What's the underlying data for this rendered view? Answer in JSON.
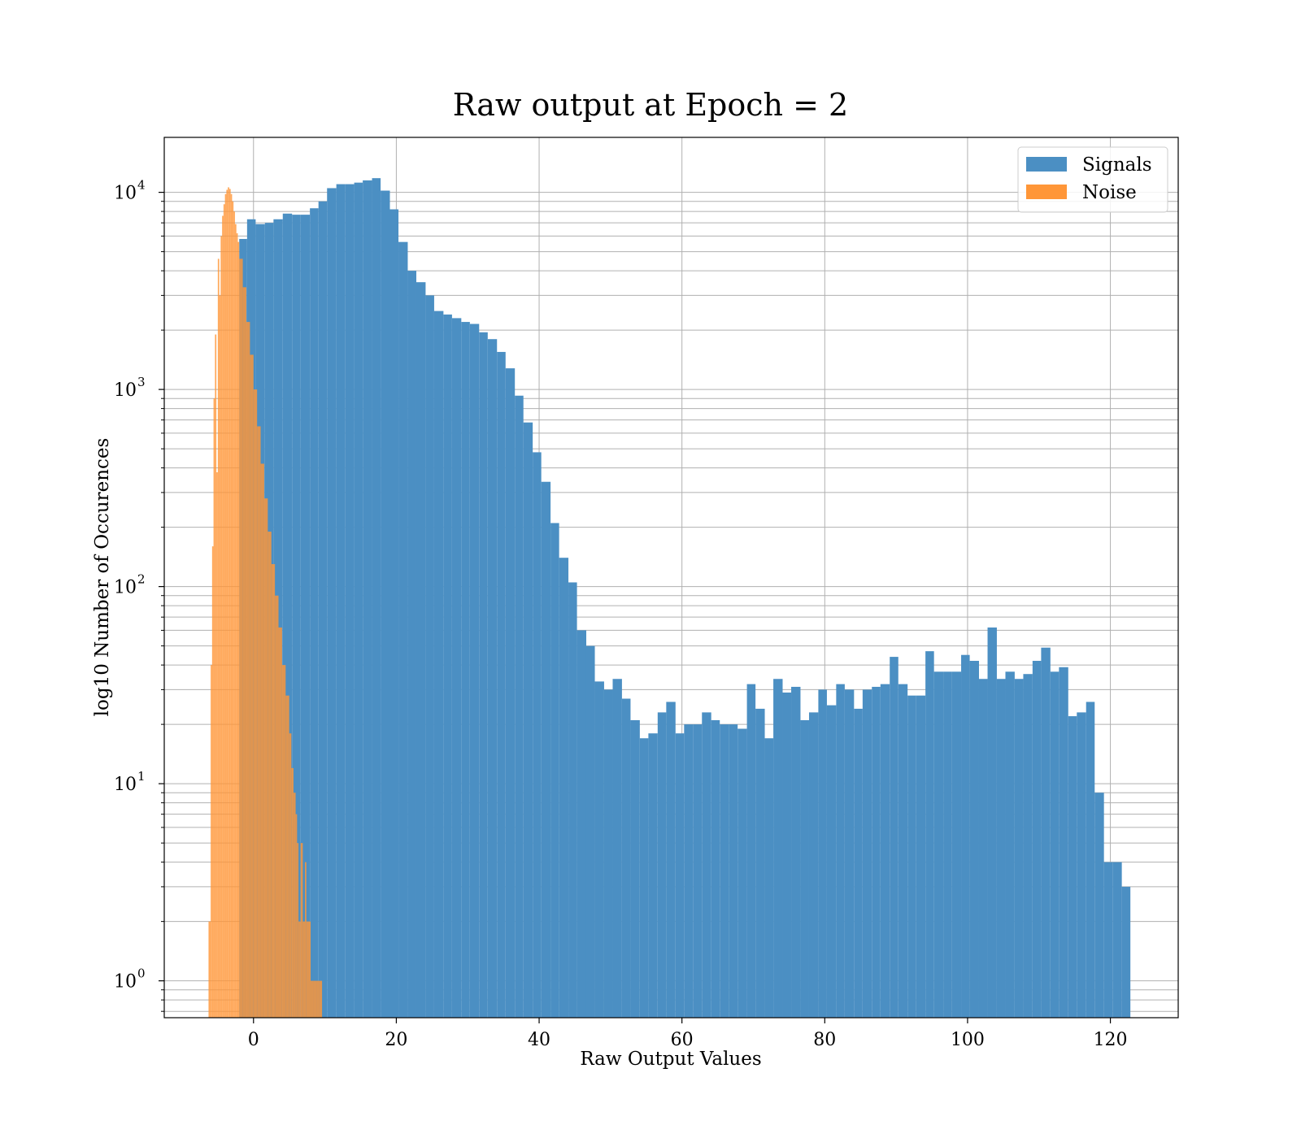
{
  "chart_data": {
    "type": "bar",
    "title": "Raw output at Epoch = 2",
    "xlabel": "Raw Output Values",
    "ylabel": "log10 Number of Occurences",
    "x_ticks": [
      0,
      20,
      40,
      60,
      80,
      100,
      120
    ],
    "x_tick_labels": [
      "0",
      "20",
      "40",
      "60",
      "80",
      "100",
      "120"
    ],
    "xlim": [
      -12.5,
      129.5
    ],
    "y_scale": "log",
    "ylim": [
      0.65,
      19000
    ],
    "y_ticks": [
      {
        "value": 1,
        "base": "10",
        "exp": "0"
      },
      {
        "value": 10,
        "base": "10",
        "exp": "1"
      },
      {
        "value": 100,
        "base": "10",
        "exp": "2"
      },
      {
        "value": 1000,
        "base": "10",
        "exp": "3"
      },
      {
        "value": 10000,
        "base": "10",
        "exp": "4"
      }
    ],
    "grid": "major and minor",
    "legend": {
      "position": "top-right",
      "entries": [
        "Signals",
        "Noise"
      ]
    },
    "colors": {
      "Signals": "#4b8fc3",
      "Noise": "#ff9638",
      "overlap": "#e08636"
    },
    "series": [
      {
        "name": "Signals",
        "bins": [
          [
            -2.0,
            -0.9,
            5800
          ],
          [
            -0.9,
            0.3,
            7300
          ],
          [
            0.3,
            1.6,
            6900
          ],
          [
            1.6,
            2.8,
            7000
          ],
          [
            2.8,
            4.1,
            7300
          ],
          [
            4.1,
            5.4,
            7800
          ],
          [
            5.4,
            6.6,
            7700
          ],
          [
            6.6,
            7.9,
            7700
          ],
          [
            7.9,
            9.1,
            8300
          ],
          [
            9.1,
            10.3,
            9000
          ],
          [
            10.3,
            11.6,
            10500
          ],
          [
            11.6,
            12.8,
            11000
          ],
          [
            12.8,
            14.1,
            11000
          ],
          [
            14.1,
            15.3,
            11200
          ],
          [
            15.3,
            16.6,
            11500
          ],
          [
            16.6,
            17.8,
            11800
          ],
          [
            17.8,
            19.1,
            10200
          ],
          [
            19.1,
            20.3,
            8200
          ],
          [
            20.3,
            21.6,
            5600
          ],
          [
            21.6,
            22.8,
            4000
          ],
          [
            22.8,
            24.1,
            3500
          ],
          [
            24.1,
            25.3,
            3000
          ],
          [
            25.3,
            26.6,
            2500
          ],
          [
            26.6,
            27.8,
            2400
          ],
          [
            27.8,
            29.1,
            2300
          ],
          [
            29.1,
            30.3,
            2200
          ],
          [
            30.3,
            31.6,
            2150
          ],
          [
            31.6,
            32.8,
            1950
          ],
          [
            32.8,
            34.1,
            1800
          ],
          [
            34.1,
            35.3,
            1550
          ],
          [
            35.3,
            36.6,
            1280
          ],
          [
            36.6,
            37.8,
            930
          ],
          [
            37.8,
            39.1,
            680
          ],
          [
            39.1,
            40.3,
            480
          ],
          [
            40.3,
            41.6,
            340
          ],
          [
            41.6,
            42.8,
            210
          ],
          [
            42.8,
            44.1,
            140
          ],
          [
            44.1,
            45.3,
            105
          ],
          [
            45.3,
            46.6,
            60
          ],
          [
            46.6,
            47.8,
            50
          ],
          [
            47.8,
            49.1,
            33
          ],
          [
            49.1,
            50.3,
            30
          ],
          [
            50.3,
            51.6,
            34
          ],
          [
            51.6,
            52.8,
            27
          ],
          [
            52.8,
            54.1,
            21
          ],
          [
            54.1,
            55.3,
            17
          ],
          [
            55.3,
            56.6,
            18
          ],
          [
            56.6,
            57.8,
            23
          ],
          [
            57.8,
            59.1,
            26
          ],
          [
            59.1,
            60.3,
            18
          ],
          [
            60.3,
            61.6,
            20
          ],
          [
            61.6,
            62.8,
            20
          ],
          [
            62.8,
            64.1,
            23
          ],
          [
            64.1,
            65.3,
            21
          ],
          [
            65.3,
            66.6,
            20
          ],
          [
            66.6,
            67.8,
            20
          ],
          [
            67.8,
            69.1,
            19
          ],
          [
            69.1,
            70.3,
            32
          ],
          [
            70.3,
            71.6,
            24
          ],
          [
            71.6,
            72.8,
            17
          ],
          [
            72.8,
            74.1,
            34
          ],
          [
            74.1,
            75.3,
            29
          ],
          [
            75.3,
            76.6,
            31
          ],
          [
            76.6,
            77.8,
            21
          ],
          [
            77.8,
            79.1,
            23
          ],
          [
            79.1,
            80.3,
            30
          ],
          [
            80.3,
            81.6,
            25
          ],
          [
            81.6,
            82.8,
            32
          ],
          [
            82.8,
            84.1,
            30
          ],
          [
            84.1,
            85.3,
            24
          ],
          [
            85.3,
            86.6,
            30
          ],
          [
            86.6,
            87.8,
            31
          ],
          [
            87.8,
            89.1,
            32
          ],
          [
            89.1,
            90.3,
            44
          ],
          [
            90.3,
            91.6,
            32
          ],
          [
            91.6,
            92.8,
            28
          ],
          [
            92.8,
            94.1,
            28
          ],
          [
            94.1,
            95.3,
            47
          ],
          [
            95.3,
            96.6,
            37
          ],
          [
            96.6,
            97.8,
            37
          ],
          [
            97.8,
            99.1,
            37
          ],
          [
            99.1,
            100.3,
            45
          ],
          [
            100.3,
            101.6,
            42
          ],
          [
            101.6,
            102.8,
            34
          ],
          [
            102.8,
            104.1,
            62
          ],
          [
            104.1,
            105.3,
            34
          ],
          [
            105.3,
            106.6,
            37
          ],
          [
            106.6,
            107.8,
            34
          ],
          [
            107.8,
            109.1,
            36
          ],
          [
            109.1,
            110.3,
            42
          ],
          [
            110.3,
            111.6,
            49
          ],
          [
            111.6,
            112.8,
            37
          ],
          [
            112.8,
            114.1,
            39
          ],
          [
            114.1,
            115.3,
            22
          ],
          [
            115.3,
            116.6,
            23
          ],
          [
            116.6,
            117.8,
            26
          ],
          [
            117.8,
            119.1,
            9
          ],
          [
            119.1,
            120.3,
            4
          ],
          [
            120.3,
            121.6,
            4
          ],
          [
            121.6,
            122.8,
            3
          ],
          [
            7.4,
            9.3,
            1
          ],
          [
            9.3,
            9.6,
            2
          ]
        ]
      },
      {
        "name": "Noise",
        "bins": [
          [
            -6.3,
            -6.0,
            2
          ],
          [
            -6.0,
            -5.8,
            40
          ],
          [
            -5.8,
            -5.6,
            160
          ],
          [
            -5.6,
            -5.4,
            900
          ],
          [
            -5.4,
            -5.2,
            1900
          ],
          [
            -5.2,
            -5.0,
            380
          ],
          [
            -5.0,
            -4.8,
            4600
          ],
          [
            -4.8,
            -4.6,
            3000
          ],
          [
            -4.6,
            -4.4,
            6000
          ],
          [
            -4.4,
            -4.2,
            7600
          ],
          [
            -4.2,
            -4.0,
            8700
          ],
          [
            -4.0,
            -3.8,
            9800
          ],
          [
            -3.8,
            -3.6,
            10300
          ],
          [
            -3.6,
            -3.4,
            10600
          ],
          [
            -3.4,
            -3.2,
            10400
          ],
          [
            -3.2,
            -3.0,
            9800
          ],
          [
            -3.0,
            -2.8,
            9000
          ],
          [
            -2.8,
            -2.6,
            8000
          ],
          [
            -2.6,
            -2.4,
            6900
          ],
          [
            -2.4,
            -2.2,
            6200
          ],
          [
            -2.2,
            -2.0,
            5600
          ],
          [
            -2.0,
            -1.5,
            4600
          ],
          [
            -1.5,
            -1.0,
            3300
          ],
          [
            -1.0,
            -0.5,
            2200
          ],
          [
            -0.5,
            0.0,
            1500
          ],
          [
            0.0,
            0.5,
            1000
          ],
          [
            0.5,
            1.0,
            650
          ],
          [
            1.0,
            1.5,
            420
          ],
          [
            1.5,
            2.0,
            280
          ],
          [
            2.0,
            2.5,
            190
          ],
          [
            2.5,
            3.0,
            130
          ],
          [
            3.0,
            3.5,
            90
          ],
          [
            3.5,
            4.0,
            62
          ],
          [
            4.0,
            4.5,
            40
          ],
          [
            4.5,
            5.0,
            28
          ],
          [
            5.0,
            5.3,
            18
          ],
          [
            5.3,
            5.6,
            12
          ],
          [
            5.6,
            5.9,
            9
          ],
          [
            5.9,
            6.1,
            7
          ],
          [
            6.1,
            6.3,
            5
          ],
          [
            6.3,
            6.6,
            2
          ],
          [
            6.6,
            6.9,
            5
          ],
          [
            6.9,
            7.2,
            2
          ],
          [
            7.2,
            7.4,
            4
          ],
          [
            7.4,
            8.0,
            2
          ],
          [
            8.0,
            8.4,
            1
          ],
          [
            8.4,
            8.8,
            1
          ],
          [
            8.8,
            9.2,
            1
          ],
          [
            9.2,
            9.6,
            1
          ]
        ]
      }
    ]
  }
}
